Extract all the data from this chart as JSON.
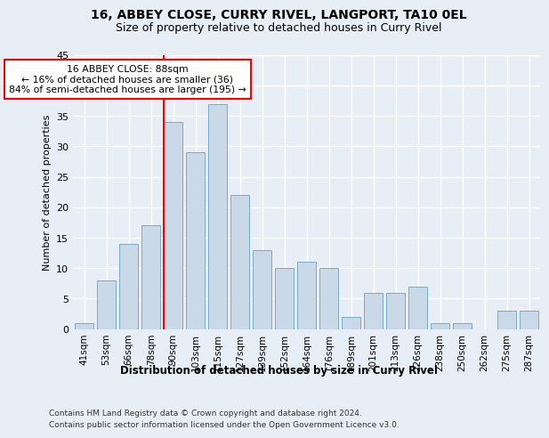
{
  "title1": "16, ABBEY CLOSE, CURRY RIVEL, LANGPORT, TA10 0EL",
  "title2": "Size of property relative to detached houses in Curry Rivel",
  "xlabel": "Distribution of detached houses by size in Curry Rivel",
  "ylabel": "Number of detached properties",
  "categories": [
    "41sqm",
    "53sqm",
    "66sqm",
    "78sqm",
    "90sqm",
    "103sqm",
    "115sqm",
    "127sqm",
    "139sqm",
    "152sqm",
    "164sqm",
    "176sqm",
    "189sqm",
    "201sqm",
    "213sqm",
    "226sqm",
    "238sqm",
    "250sqm",
    "262sqm",
    "275sqm",
    "287sqm"
  ],
  "values": [
    1,
    8,
    14,
    17,
    34,
    29,
    37,
    22,
    13,
    10,
    11,
    10,
    2,
    6,
    6,
    7,
    1,
    1,
    0,
    3,
    3
  ],
  "bar_color": "#c9d9e8",
  "bar_edge_color": "#7aaac8",
  "vline_color": "red",
  "annotation_text": "16 ABBEY CLOSE: 88sqm\n← 16% of detached houses are smaller (36)\n84% of semi-detached houses are larger (195) →",
  "annotation_box_color": "white",
  "annotation_box_edge": "red",
  "ylim": [
    0,
    45
  ],
  "yticks": [
    0,
    5,
    10,
    15,
    20,
    25,
    30,
    35,
    40,
    45
  ],
  "footer1": "Contains HM Land Registry data © Crown copyright and database right 2024.",
  "footer2": "Contains public sector information licensed under the Open Government Licence v3.0.",
  "bg_color": "#e8eef5",
  "plot_bg_color": "#e8eef5",
  "grid_color": "#ffffff",
  "title1_fontsize": 10,
  "title2_fontsize": 9
}
